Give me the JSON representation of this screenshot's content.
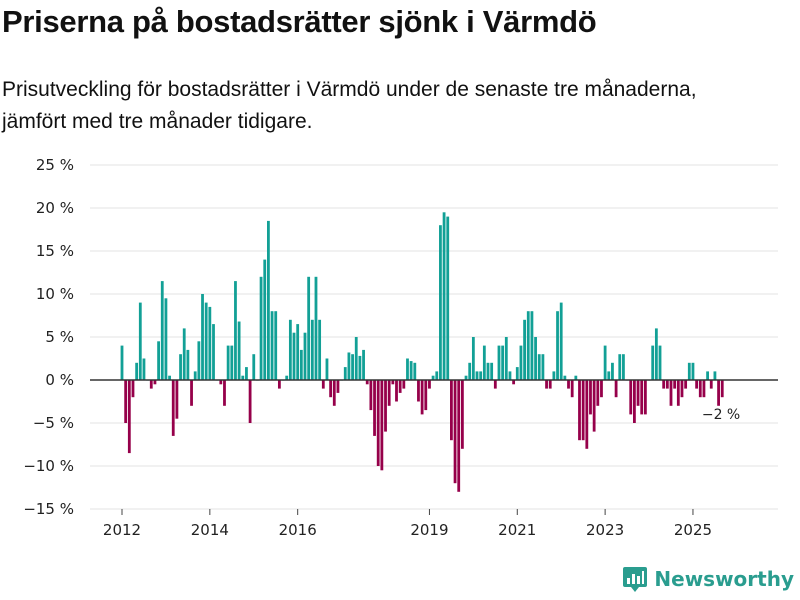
{
  "title": "Priserna på bostadsrätter sjönk i Värmdö",
  "subtitle": "Prisutveckling för bostadsrätter i Värmdö under de senaste tre månaderna, jämfört med tre månader tidigare.",
  "brand": "Newsworthy",
  "colors": {
    "positive": "#12a096",
    "negative": "#96004a",
    "grid": "#e3e3e3",
    "zero": "#333333"
  },
  "chart_data": {
    "type": "bar",
    "ylim": [
      -15,
      25
    ],
    "y_ticks": [
      25,
      20,
      15,
      10,
      5,
      0,
      -5,
      -10,
      -15
    ],
    "y_tick_labels": [
      "25 %",
      "20 %",
      "15 %",
      "10 %",
      "5 %",
      "0 %",
      "−5 %",
      "−10 %",
      "−15 %"
    ],
    "x_ticks": [
      "2012",
      "2014",
      "2016",
      "2019",
      "2021",
      "2023",
      "2025"
    ],
    "x_tick_month_index": [
      0,
      24,
      48,
      84,
      108,
      132,
      156
    ],
    "series_unit": "%",
    "start": "2012-01",
    "values": [
      4,
      -5,
      -8.5,
      -2,
      2,
      9,
      2.5,
      0,
      -1,
      -0.5,
      4.5,
      11.5,
      9.5,
      0.5,
      -6.5,
      -4.5,
      3,
      6,
      3.5,
      -3,
      1,
      4.5,
      10,
      9,
      8.5,
      6.5,
      0,
      -0.5,
      -3,
      4,
      4,
      11.5,
      6.8,
      0.5,
      1.5,
      -5,
      3,
      0,
      12,
      14,
      18.5,
      8,
      8,
      -1,
      0,
      0.5,
      7,
      5.5,
      6.5,
      3.5,
      5.5,
      12,
      7,
      12,
      7,
      -1,
      2.5,
      -2,
      -3,
      -1.5,
      0,
      1.5,
      3.2,
      3,
      5,
      2.8,
      3.5,
      -0.5,
      -3.5,
      -6.5,
      -10,
      -10.5,
      -6,
      -3,
      -0.5,
      -2.5,
      -1.5,
      -1,
      2.5,
      2.2,
      2,
      -2.5,
      -4,
      -3.5,
      -1,
      0.5,
      1,
      18,
      19.5,
      19,
      -7,
      -12,
      -13,
      -8,
      0.5,
      2,
      5,
      1,
      1,
      4,
      2,
      2,
      -1,
      4,
      4,
      5,
      1,
      -0.5,
      1.5,
      4,
      7,
      8,
      8,
      5,
      3,
      3,
      -1,
      -1,
      1,
      8,
      9,
      0.5,
      -1,
      -2,
      0.5,
      -7,
      -7,
      -8,
      -4,
      -6,
      -3,
      -2,
      4,
      1,
      2,
      -2,
      3,
      3,
      0,
      -4,
      -5,
      -3,
      -4,
      -4,
      0,
      4,
      6,
      4,
      -1,
      -1,
      -3,
      -1,
      -3,
      -2,
      -1,
      2,
      2,
      -1,
      -2,
      -2,
      1,
      -1,
      1,
      -3,
      -2
    ],
    "last_value_label": "−2 %"
  }
}
